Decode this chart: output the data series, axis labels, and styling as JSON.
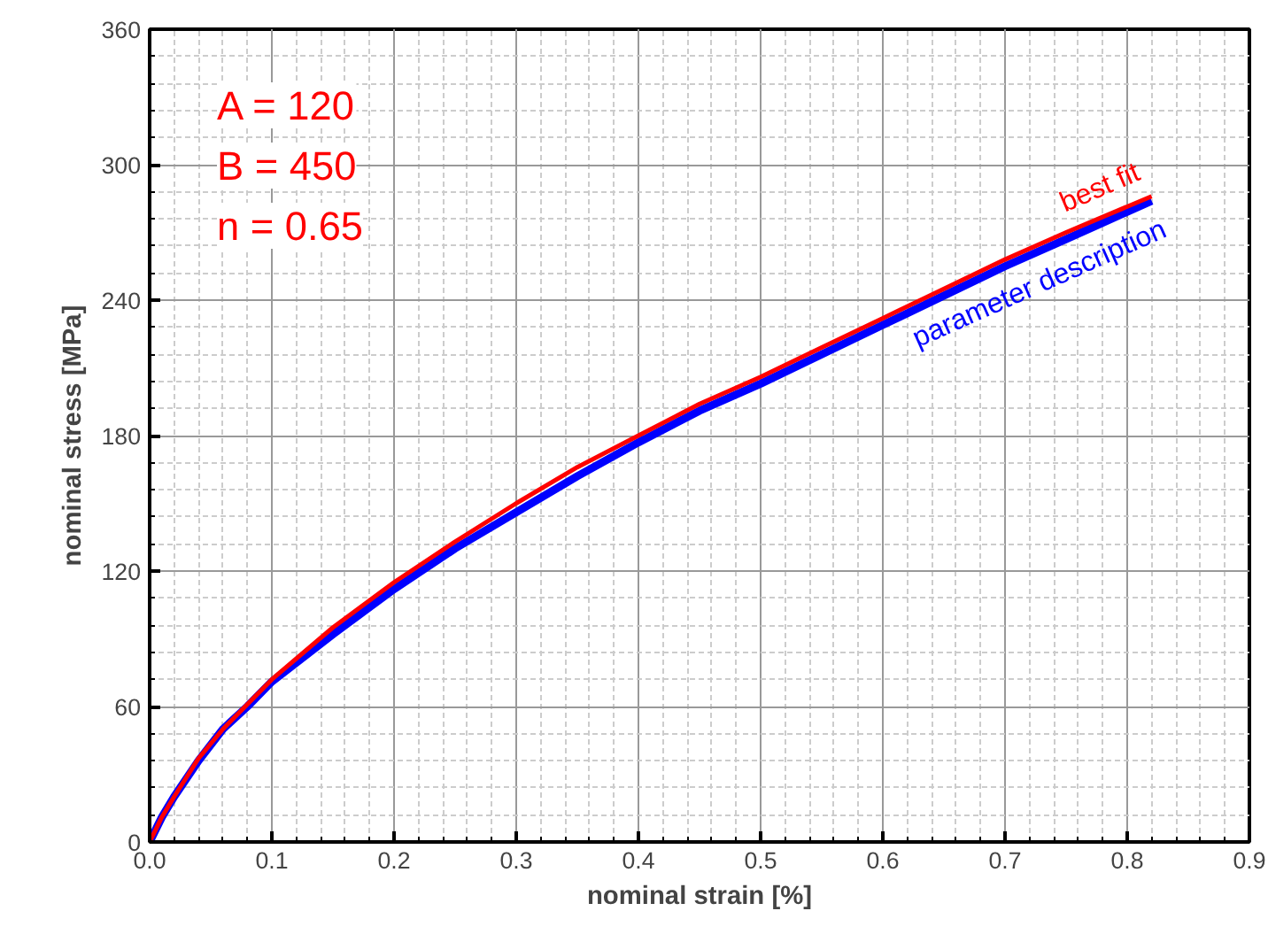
{
  "chart_data": {
    "type": "line",
    "xlabel": "nominal strain [%]",
    "ylabel": "nominal stress [MPa]",
    "xlim": [
      0,
      0.9
    ],
    "xticks": [
      {
        "value": 0,
        "label": "0.0"
      },
      0.1,
      0.2,
      0.3,
      0.4,
      0.5,
      0.6,
      0.7,
      0.8,
      0.9
    ],
    "ylim": [
      0,
      360
    ],
    "yticks": [
      0,
      60,
      120,
      180,
      240,
      300,
      360
    ],
    "grid": true,
    "line_style": "solid",
    "x": [
      0,
      0.01,
      0.02,
      0.04,
      0.06,
      0.08,
      0.1,
      0.15,
      0.2,
      0.25,
      0.3,
      0.35,
      0.4,
      0.45,
      0.5,
      0.55,
      0.6,
      0.65,
      0.7,
      0.75,
      0.82
    ],
    "series": [
      {
        "name": "best fit",
        "color": "#ff0000",
        "values": [
          0,
          11,
          20,
          37,
          50,
          61,
          72,
          95,
          115,
          133,
          150,
          166,
          180,
          194,
          206,
          219,
          232,
          245,
          258,
          270,
          286
        ]
      },
      {
        "name": "parameter description",
        "color": "#0000ff",
        "values": [
          0,
          11,
          20,
          36,
          50,
          60,
          71,
          92,
          112,
          130,
          146,
          162,
          177,
          191,
          203,
          216,
          229,
          242,
          255,
          267,
          284
        ]
      }
    ],
    "annotations": [
      "A = 120",
      "B = 450",
      "n = 0.65"
    ]
  }
}
